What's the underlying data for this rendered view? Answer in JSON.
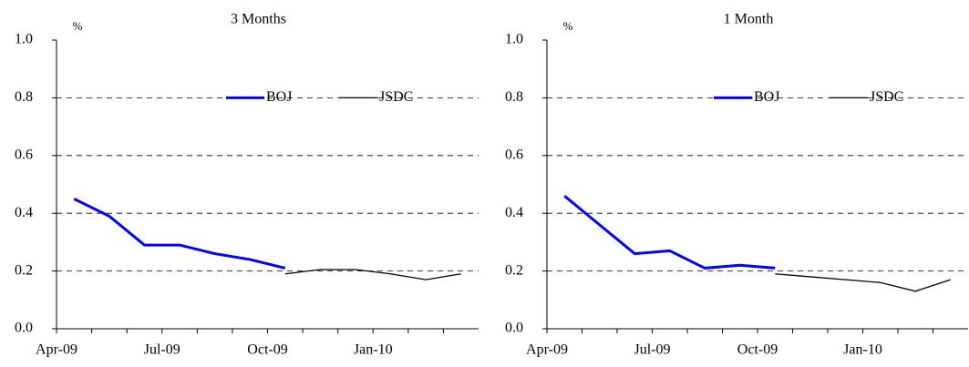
{
  "chart_data": [
    {
      "type": "line",
      "title": "3 Months",
      "y_unit_label": "%",
      "categories": [
        "Apr-09",
        null,
        null,
        "Jul-09",
        null,
        null,
        "Oct-09",
        null,
        null,
        "Jan-10",
        null,
        null
      ],
      "series": [
        {
          "name": "BOJ",
          "color": "#0000ff",
          "values": [
            0.45,
            0.39,
            0.29,
            0.29,
            0.26,
            0.24,
            0.21,
            null,
            null,
            null,
            null,
            null
          ]
        },
        {
          "name": "JSDC",
          "color": "#000000",
          "values": [
            null,
            null,
            null,
            null,
            null,
            null,
            0.19,
            0.205,
            0.205,
            0.19,
            0.17,
            0.19
          ]
        }
      ],
      "ylim": [
        0,
        1
      ],
      "yticks": [
        {
          "value": 0,
          "label": "0.0"
        },
        {
          "value": 0.2,
          "label": "0.2"
        },
        {
          "value": 0.4,
          "label": "0.4"
        },
        {
          "value": 0.6,
          "label": "0.6"
        },
        {
          "value": 0.8,
          "label": "0.8"
        },
        {
          "value": 1,
          "label": "1.0"
        }
      ],
      "grid": true
    },
    {
      "type": "line",
      "title": "1 Month",
      "y_unit_label": "%",
      "categories": [
        "Apr-09",
        null,
        null,
        "Jul-09",
        null,
        null,
        "Oct-09",
        null,
        null,
        "Jan-10",
        null,
        null
      ],
      "series": [
        {
          "name": "BOJ",
          "color": "#0000ff",
          "values": [
            0.46,
            0.36,
            0.26,
            0.27,
            0.21,
            0.22,
            0.21,
            null,
            null,
            null,
            null,
            null
          ]
        },
        {
          "name": "JSDC",
          "color": "#000000",
          "values": [
            null,
            null,
            null,
            null,
            null,
            null,
            0.19,
            0.18,
            0.17,
            0.16,
            0.13,
            0.17
          ]
        }
      ],
      "ylim": [
        0,
        1
      ],
      "yticks": [
        {
          "value": 0,
          "label": "0.0"
        },
        {
          "value": 0.2,
          "label": "0.2"
        },
        {
          "value": 0.4,
          "label": "0.4"
        },
        {
          "value": 0.6,
          "label": "0.6"
        },
        {
          "value": 0.8,
          "label": "0.8"
        },
        {
          "value": 1,
          "label": "1.0"
        }
      ],
      "grid": true
    }
  ]
}
